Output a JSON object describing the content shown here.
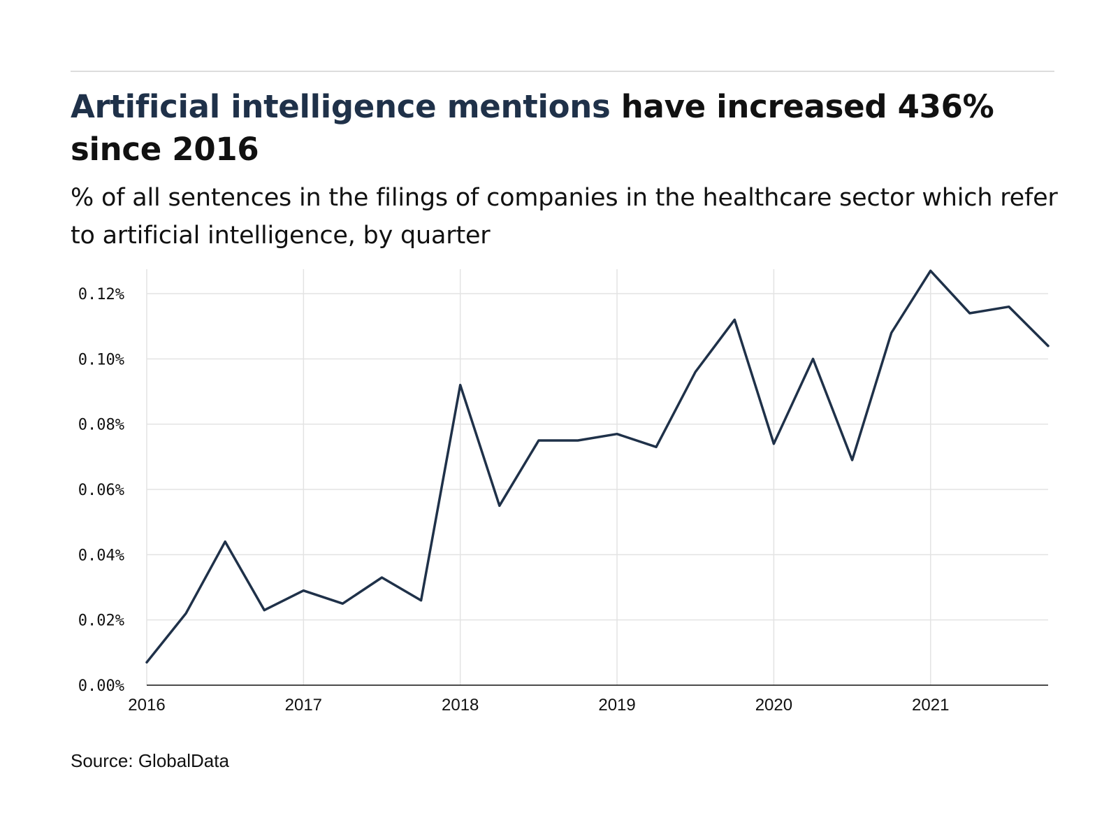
{
  "header": {
    "title_highlight": "Artificial intelligence mentions",
    "title_rest": " have increased 436% since 2016",
    "subtitle": "% of all sentences in the filings of companies in the healthcare sector which refer to artificial intelligence, by quarter"
  },
  "footer": {
    "source": "Source: GlobalData"
  },
  "colors": {
    "line": "#1f3149",
    "grid": "#e3e3e3",
    "axis": "#111111",
    "title_highlight": "#1f3149"
  },
  "chart_data": {
    "type": "line",
    "title": "Artificial intelligence mentions have increased 436% since 2016",
    "subtitle": "% of all sentences in the filings of companies in the healthcare sector which refer to artificial intelligence, by quarter",
    "xlabel": "",
    "ylabel": "",
    "x_tick_labels": [
      "2016",
      "2017",
      "2018",
      "2019",
      "2020",
      "2021"
    ],
    "y_tick_labels": [
      "0.00%",
      "0.02%",
      "0.04%",
      "0.06%",
      "0.08%",
      "0.10%",
      "0.12%"
    ],
    "y_ticks": [
      0,
      0.02,
      0.04,
      0.06,
      0.08,
      0.1,
      0.12
    ],
    "ylim": [
      0,
      0.1275
    ],
    "xlim": [
      2016,
      2021.75
    ],
    "grid": true,
    "legend": "none",
    "series": [
      {
        "x": [
          "2016 Q1",
          "2016 Q2",
          "2016 Q3",
          "2016 Q4",
          "2017 Q1",
          "2017 Q2",
          "2017 Q3",
          "2017 Q4",
          "2018 Q1",
          "2018 Q2",
          "2018 Q3",
          "2018 Q4",
          "2019 Q1",
          "2019 Q2",
          "2019 Q3",
          "2019 Q4",
          "2020 Q1",
          "2020 Q2",
          "2020 Q3",
          "2020 Q4",
          "2021 Q1",
          "2021 Q2",
          "2021 Q3",
          "2021 Q4"
        ],
        "values": [
          0.007,
          0.022,
          0.044,
          0.023,
          0.029,
          0.025,
          0.033,
          0.026,
          0.092,
          0.055,
          0.075,
          0.075,
          0.077,
          0.073,
          0.096,
          0.112,
          0.074,
          0.1,
          0.069,
          0.108,
          0.127,
          0.114,
          0.116,
          0.104
        ]
      }
    ]
  }
}
